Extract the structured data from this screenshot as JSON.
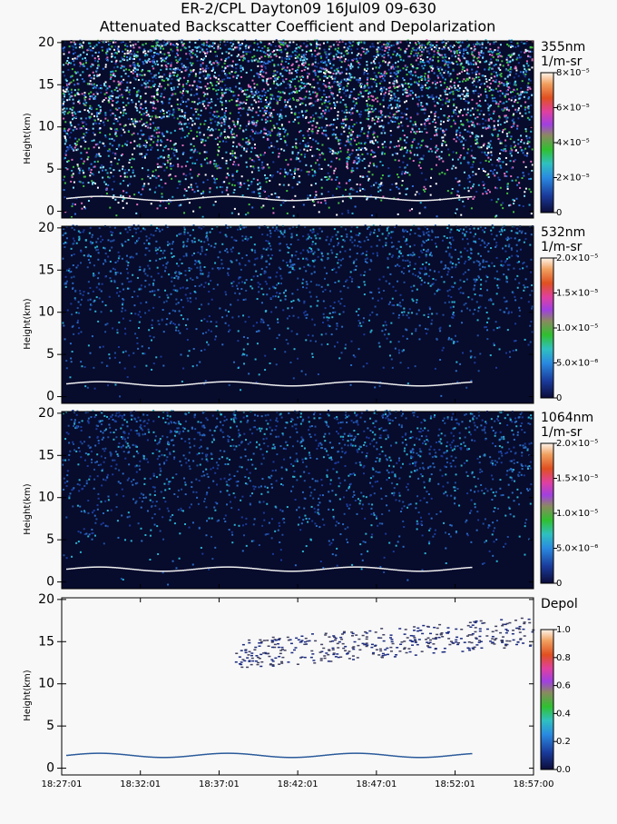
{
  "title": "ER-2/CPL Dayton09 16Jul09 09-630",
  "subtitle": "Attenuated Backscatter Coefficient and Depolarization",
  "chart_data": [
    {
      "type": "heatmap",
      "ylabel": "Height(km)",
      "ylim": [
        -0.8,
        20.2
      ],
      "yticks": [
        0,
        5,
        10,
        15,
        20
      ],
      "colorbar": {
        "title": "355nm",
        "unit": "1/m-sr",
        "lim": [
          0,
          8e-05
        ],
        "ticks": [
          {
            "value": 0,
            "label": "0"
          },
          {
            "value": 2e-05,
            "label": "2×10⁻⁵"
          },
          {
            "value": 4e-05,
            "label": "4×10⁻⁵"
          },
          {
            "value": 6e-05,
            "label": "6×10⁻⁵"
          },
          {
            "value": 8e-05,
            "label": "8×10⁻⁵"
          }
        ]
      }
    },
    {
      "type": "heatmap",
      "ylabel": "Height(km)",
      "ylim": [
        -0.8,
        20.2
      ],
      "yticks": [
        0,
        5,
        10,
        15,
        20
      ],
      "colorbar": {
        "title": "532nm",
        "unit": "1/m-sr",
        "lim": [
          0,
          2e-05
        ],
        "ticks": [
          {
            "value": 0,
            "label": "0"
          },
          {
            "value": 5e-06,
            "label": "5.0×10⁻⁶"
          },
          {
            "value": 1e-05,
            "label": "1.0×10⁻⁵"
          },
          {
            "value": 1.5e-05,
            "label": "1.5×10⁻⁵"
          },
          {
            "value": 2e-05,
            "label": "2.0×10⁻⁵"
          }
        ]
      }
    },
    {
      "type": "heatmap",
      "ylabel": "Height(km)",
      "ylim": [
        -0.8,
        20.2
      ],
      "yticks": [
        0,
        5,
        10,
        15,
        20
      ],
      "colorbar": {
        "title": "1064nm",
        "unit": "1/m-sr",
        "lim": [
          0,
          2e-05
        ],
        "ticks": [
          {
            "value": 0,
            "label": "0"
          },
          {
            "value": 5e-06,
            "label": "5.0×10⁻⁶"
          },
          {
            "value": 1e-05,
            "label": "1.0×10⁻⁵"
          },
          {
            "value": 1.5e-05,
            "label": "1.5×10⁻⁵"
          },
          {
            "value": 2e-05,
            "label": "2.0×10⁻⁵"
          }
        ]
      }
    },
    {
      "type": "heatmap",
      "ylabel": "Height(km)",
      "ylim": [
        -0.8,
        20.2
      ],
      "yticks": [
        0,
        5,
        10,
        15,
        20
      ],
      "xlim": [
        66421,
        68220
      ],
      "xticks": [
        {
          "value": 66421,
          "label": "18:27:01"
        },
        {
          "value": 66721,
          "label": "18:32:01"
        },
        {
          "value": 67021,
          "label": "18:37:01"
        },
        {
          "value": 67321,
          "label": "18:42:01"
        },
        {
          "value": 67621,
          "label": "18:47:01"
        },
        {
          "value": 67921,
          "label": "18:52:01"
        },
        {
          "value": 68220,
          "label": "18:57:00"
        }
      ],
      "colorbar": {
        "title": "Depol",
        "lim": [
          0,
          1
        ],
        "ticks": [
          {
            "value": 0,
            "label": "0.0"
          },
          0.2,
          0.4,
          0.6,
          0.8,
          {
            "value": 1,
            "label": "1.0"
          }
        ]
      }
    }
  ]
}
